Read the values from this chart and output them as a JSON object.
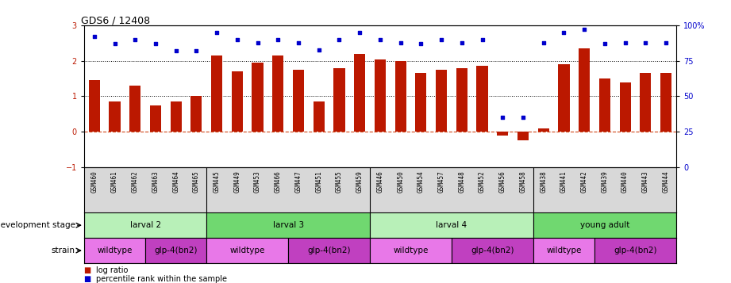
{
  "title": "GDS6 / 12408",
  "samples": [
    "GSM460",
    "GSM461",
    "GSM462",
    "GSM463",
    "GSM464",
    "GSM465",
    "GSM445",
    "GSM449",
    "GSM453",
    "GSM466",
    "GSM447",
    "GSM451",
    "GSM455",
    "GSM459",
    "GSM446",
    "GSM450",
    "GSM454",
    "GSM457",
    "GSM448",
    "GSM452",
    "GSM456",
    "GSM458",
    "GSM438",
    "GSM441",
    "GSM442",
    "GSM439",
    "GSM440",
    "GSM443",
    "GSM444"
  ],
  "log_ratio": [
    1.45,
    0.85,
    1.3,
    0.75,
    0.85,
    1.0,
    2.15,
    1.7,
    1.95,
    2.15,
    1.75,
    0.85,
    1.8,
    2.2,
    2.05,
    2.0,
    1.65,
    1.75,
    1.8,
    1.85,
    -0.1,
    -0.25,
    0.1,
    1.9,
    2.35,
    1.5,
    1.4,
    1.65,
    1.65
  ],
  "percentile": [
    92,
    87,
    90,
    87,
    82,
    82,
    95,
    90,
    88,
    90,
    88,
    83,
    90,
    95,
    90,
    88,
    87,
    90,
    88,
    90,
    35,
    35,
    88,
    95,
    97,
    87,
    88,
    88,
    88
  ],
  "dev_stages": [
    {
      "label": "larval 2",
      "start": 0,
      "end": 6,
      "color": "#b8f0b8"
    },
    {
      "label": "larval 3",
      "start": 6,
      "end": 14,
      "color": "#70d870"
    },
    {
      "label": "larval 4",
      "start": 14,
      "end": 22,
      "color": "#b8f0b8"
    },
    {
      "label": "young adult",
      "start": 22,
      "end": 29,
      "color": "#70d870"
    }
  ],
  "strains": [
    {
      "label": "wildtype",
      "start": 0,
      "end": 3,
      "color": "#e878e8"
    },
    {
      "label": "glp-4(bn2)",
      "start": 3,
      "end": 6,
      "color": "#c040c0"
    },
    {
      "label": "wildtype",
      "start": 6,
      "end": 10,
      "color": "#e878e8"
    },
    {
      "label": "glp-4(bn2)",
      "start": 10,
      "end": 14,
      "color": "#c040c0"
    },
    {
      "label": "wildtype",
      "start": 14,
      "end": 18,
      "color": "#e878e8"
    },
    {
      "label": "glp-4(bn2)",
      "start": 18,
      "end": 22,
      "color": "#c040c0"
    },
    {
      "label": "wildtype",
      "start": 22,
      "end": 25,
      "color": "#e878e8"
    },
    {
      "label": "glp-4(bn2)",
      "start": 25,
      "end": 29,
      "color": "#c040c0"
    }
  ],
  "bar_color": "#bb1800",
  "dot_color": "#0000cc",
  "ylim_left": [
    -1,
    3
  ],
  "ylim_right": [
    0,
    100
  ],
  "yticks_left": [
    -1,
    0,
    1,
    2,
    3
  ],
  "yticks_right": [
    0,
    25,
    50,
    75,
    100
  ],
  "background_color": "#ffffff",
  "dev_stage_label": "development stage",
  "strain_label": "strain",
  "legend_bar_label": "log ratio",
  "legend_dot_label": "percentile rank within the sample",
  "group_boundaries": [
    6,
    14,
    22
  ],
  "sample_box_color": "#d8d8d8"
}
